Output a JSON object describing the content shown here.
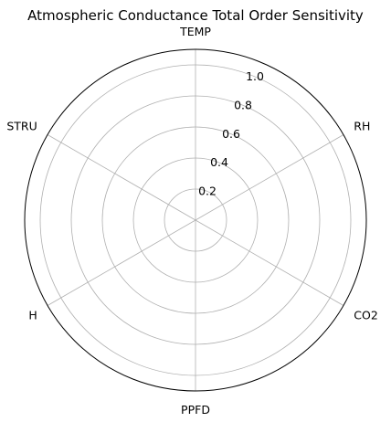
{
  "chart_data": {
    "type": "radar",
    "title": "Atmospheric Conductance Total Order Sensitivity",
    "categories": [
      "TEMP",
      "RH",
      "CO2",
      "PPFD",
      "H",
      "STRU"
    ],
    "series": [],
    "rlim": [
      0,
      1.1
    ],
    "r_ticks": [
      0.2,
      0.4,
      0.6,
      0.8,
      1.0
    ],
    "r_tick_labels": [
      "0.2",
      "0.4",
      "0.6",
      "0.8",
      "1.0"
    ],
    "grid": true,
    "colors": {
      "grid": "#b0b0b0",
      "frame": "#000000",
      "text": "#000000"
    }
  }
}
